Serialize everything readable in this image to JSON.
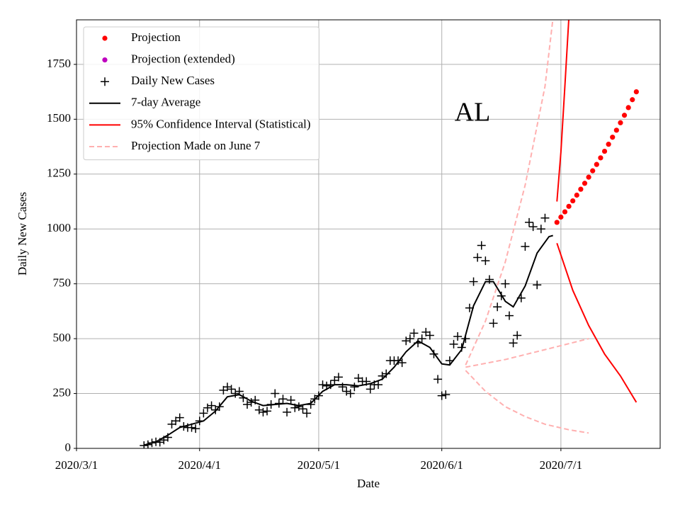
{
  "chart_data": {
    "type": "timeseries",
    "annotation": "AL",
    "xlabel": "Date",
    "ylabel": "Daily New Cases",
    "xlim": [
      "2020/3/1",
      "2020/7/26"
    ],
    "xticks": [
      "2020/3/1",
      "2020/4/1",
      "2020/5/1",
      "2020/6/1",
      "2020/7/1"
    ],
    "ylim": [
      0,
      1953
    ],
    "yticks": [
      0,
      250,
      500,
      750,
      1000,
      1250,
      1500,
      1750
    ],
    "grid": true,
    "legend": "upper left",
    "series": [
      {
        "name": "Projection",
        "color": "#ff0000",
        "marker": "dot",
        "lines": [
          {
            "x": [
              "2020/6/30",
              "2020/7/1",
              "2020/7/2",
              "2020/7/3",
              "2020/7/4",
              "2020/7/5",
              "2020/7/6",
              "2020/7/7",
              "2020/7/8",
              "2020/7/9",
              "2020/7/10",
              "2020/7/11",
              "2020/7/12",
              "2020/7/13",
              "2020/7/14",
              "2020/7/15",
              "2020/7/16",
              "2020/7/17",
              "2020/7/18",
              "2020/7/19",
              "2020/7/20"
            ],
            "values": [
              1030,
              1054,
              1078,
              1103,
              1128,
              1154,
              1181,
              1208,
              1236,
              1265,
              1294,
              1324,
              1354,
              1386,
              1418,
              1450,
              1484,
              1518,
              1553,
              1589,
              1625
            ]
          }
        ]
      },
      {
        "name": "Projection (extended)",
        "color": "#bf00bf",
        "marker": "dot",
        "lines": [
          {
            "x": [],
            "values": []
          }
        ]
      },
      {
        "name": "Daily New Cases",
        "color": "#000000",
        "marker": "plus",
        "lines": [
          {
            "x": [
              "2020/3/18",
              "2020/3/19",
              "2020/3/20",
              "2020/3/21",
              "2020/3/22",
              "2020/3/23",
              "2020/3/24",
              "2020/3/25",
              "2020/3/26",
              "2020/3/27",
              "2020/3/28",
              "2020/3/29",
              "2020/3/30",
              "2020/3/31",
              "2020/4/1",
              "2020/4/2",
              "2020/4/3",
              "2020/4/4",
              "2020/4/5",
              "2020/4/6",
              "2020/4/7",
              "2020/4/8",
              "2020/4/9",
              "2020/4/10",
              "2020/4/11",
              "2020/4/12",
              "2020/4/13",
              "2020/4/14",
              "2020/4/15",
              "2020/4/16",
              "2020/4/17",
              "2020/4/18",
              "2020/4/19",
              "2020/4/20",
              "2020/4/21",
              "2020/4/22",
              "2020/4/23",
              "2020/4/24",
              "2020/4/25",
              "2020/4/26",
              "2020/4/27",
              "2020/4/28",
              "2020/4/29",
              "2020/4/30",
              "2020/5/1",
              "2020/5/2",
              "2020/5/3",
              "2020/5/4",
              "2020/5/5",
              "2020/5/6",
              "2020/5/7",
              "2020/5/8",
              "2020/5/9",
              "2020/5/10",
              "2020/5/11",
              "2020/5/12",
              "2020/5/13",
              "2020/5/14",
              "2020/5/15",
              "2020/5/16",
              "2020/5/17",
              "2020/5/18",
              "2020/5/19",
              "2020/5/20",
              "2020/5/21",
              "2020/5/22",
              "2020/5/23",
              "2020/5/24",
              "2020/5/25",
              "2020/5/26",
              "2020/5/27",
              "2020/5/28",
              "2020/5/29",
              "2020/5/30",
              "2020/5/31",
              "2020/6/1",
              "2020/6/2",
              "2020/6/3",
              "2020/6/4",
              "2020/6/5",
              "2020/6/6",
              "2020/6/7",
              "2020/6/8",
              "2020/6/9",
              "2020/6/10",
              "2020/6/11",
              "2020/6/12",
              "2020/6/13",
              "2020/6/14",
              "2020/6/15",
              "2020/6/16",
              "2020/6/17",
              "2020/6/18",
              "2020/6/19",
              "2020/6/20",
              "2020/6/21",
              "2020/6/22",
              "2020/6/23",
              "2020/6/24",
              "2020/6/25",
              "2020/6/26",
              "2020/6/27"
            ],
            "values": [
              13,
              17,
              25,
              30,
              28,
              38,
              50,
              110,
              125,
              140,
              100,
              95,
              95,
              90,
              125,
              160,
              185,
              195,
              175,
              190,
              265,
              280,
              270,
              250,
              260,
              230,
              200,
              210,
              220,
              175,
              165,
              170,
              200,
              250,
              205,
              225,
              165,
              220,
              185,
              190,
              180,
              160,
              200,
              225,
              240,
              290,
              285,
              290,
              310,
              325,
              280,
              260,
              250,
              280,
              320,
              305,
              305,
              270,
              290,
              290,
              330,
              340,
              400,
              400,
              400,
              390,
              490,
              500,
              525,
              480,
              500,
              530,
              515,
              430,
              315,
              240,
              245,
              400,
              475,
              510,
              460,
              500,
              640,
              760,
              870,
              925,
              855,
              770,
              570,
              645,
              695,
              750,
              605,
              480,
              515,
              685,
              920,
              1030,
              1010,
              745,
              1000,
              1050
            ]
          }
        ]
      },
      {
        "name": "7-day Average",
        "color": "#000000",
        "linestyle": "solid",
        "lines": [
          {
            "x": [
              "2020/3/18",
              "2020/3/21",
              "2020/3/24",
              "2020/3/27",
              "2020/3/30",
              "2020/4/2",
              "2020/4/5",
              "2020/4/8",
              "2020/4/11",
              "2020/4/14",
              "2020/4/17",
              "2020/4/20",
              "2020/4/23",
              "2020/4/26",
              "2020/4/29",
              "2020/5/2",
              "2020/5/5",
              "2020/5/8",
              "2020/5/11",
              "2020/5/14",
              "2020/5/17",
              "2020/5/20",
              "2020/5/23",
              "2020/5/26",
              "2020/5/29",
              "2020/6/1",
              "2020/6/3",
              "2020/6/6",
              "2020/6/9",
              "2020/6/12",
              "2020/6/14",
              "2020/6/17",
              "2020/6/19",
              "2020/6/22",
              "2020/6/25",
              "2020/6/28",
              "2020/6/29"
            ],
            "values": [
              15,
              30,
              60,
              95,
              110,
              125,
              170,
              235,
              245,
              215,
              195,
              200,
              205,
              195,
              205,
              260,
              290,
              290,
              285,
              295,
              315,
              370,
              440,
              490,
              460,
              385,
              380,
              450,
              650,
              760,
              760,
              670,
              645,
              740,
              890,
              965,
              970
            ]
          }
        ]
      },
      {
        "name": "95% Confidence Interval (Statistical)",
        "color": "#ff0000",
        "linestyle": "solid",
        "lines": [
          {
            "x": [
              "2020/6/30",
              "2020/7/1",
              "2020/7/2",
              "2020/7/3"
            ],
            "values": [
              1125,
              1350,
              1650,
              1960
            ]
          },
          {
            "x": [
              "2020/6/30",
              "2020/7/4",
              "2020/7/8",
              "2020/7/12",
              "2020/7/16",
              "2020/7/20"
            ],
            "values": [
              935,
              720,
              560,
              430,
              330,
              210
            ]
          }
        ]
      },
      {
        "name": "Projection Made on June 7",
        "color": "#ffb0b0",
        "linestyle": "dashed",
        "lines": [
          {
            "x": [
              "2020/6/7",
              "2020/6/12",
              "2020/6/17",
              "2020/6/22",
              "2020/6/27",
              "2020/6/29"
            ],
            "values": [
              380,
              580,
              850,
              1200,
              1650,
              1960
            ]
          },
          {
            "x": [
              "2020/6/7",
              "2020/6/17",
              "2020/6/27",
              "2020/7/8"
            ],
            "values": [
              370,
              405,
              450,
              500
            ]
          },
          {
            "x": [
              "2020/6/7",
              "2020/6/12",
              "2020/6/17",
              "2020/6/22",
              "2020/6/27",
              "2020/7/3",
              "2020/7/8"
            ],
            "values": [
              355,
              260,
              190,
              145,
              110,
              85,
              70
            ]
          }
        ]
      }
    ]
  }
}
